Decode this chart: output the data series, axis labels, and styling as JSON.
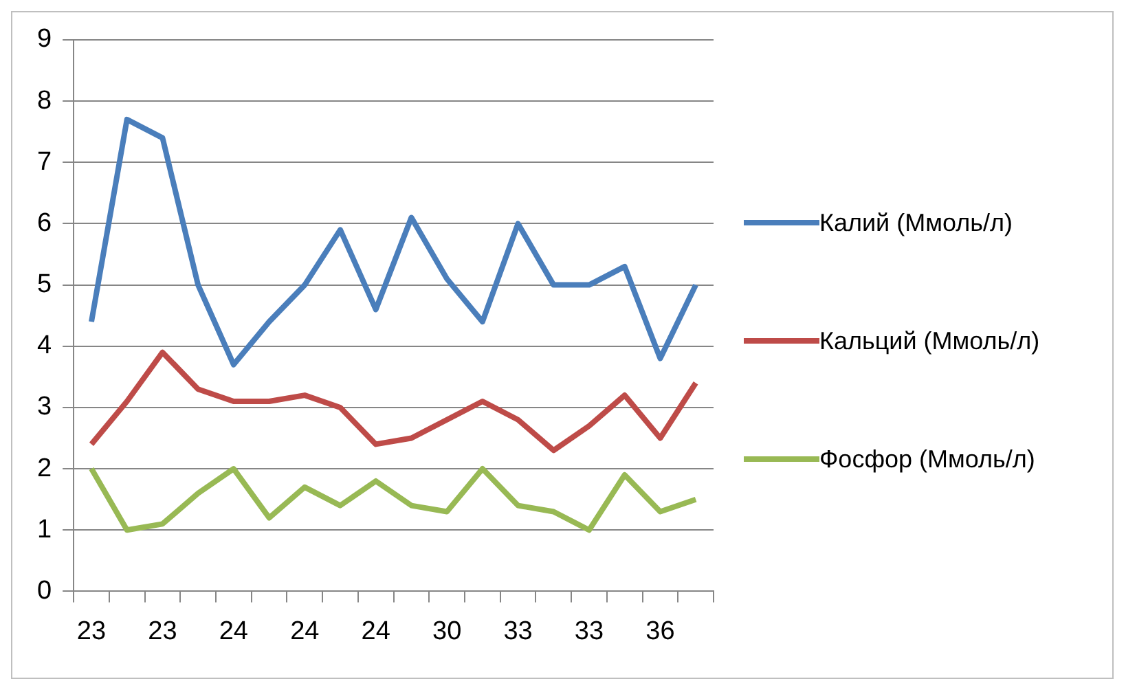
{
  "chart_data": {
    "type": "line",
    "categories": [
      "23",
      null,
      "23",
      null,
      "24",
      null,
      "24",
      null,
      "24",
      null,
      "30",
      null,
      "33",
      null,
      "33",
      null,
      "36",
      null
    ],
    "series": [
      {
        "name": "Калий (Ммоль/л)",
        "color": "#4a7ebb",
        "values": [
          4.4,
          7.7,
          7.4,
          5.0,
          3.7,
          4.4,
          5.0,
          5.9,
          4.6,
          6.1,
          5.1,
          4.4,
          6.0,
          5.0,
          5.0,
          5.3,
          3.8,
          5.0
        ]
      },
      {
        "name": "Кальций (Ммоль/л)",
        "color": "#be4b48",
        "values": [
          2.4,
          3.1,
          3.9,
          3.3,
          3.1,
          3.1,
          3.2,
          3.0,
          2.4,
          2.5,
          2.8,
          3.1,
          2.8,
          2.3,
          2.7,
          3.2,
          2.5,
          3.4
        ]
      },
      {
        "name": "Фосфор (Ммоль/л)",
        "color": "#98b954",
        "values": [
          2.0,
          1.0,
          1.1,
          1.6,
          2.0,
          1.2,
          1.7,
          1.4,
          1.8,
          1.4,
          1.3,
          2.0,
          1.4,
          1.3,
          1.0,
          1.9,
          1.3,
          1.5
        ]
      }
    ],
    "ylim": [
      0,
      9
    ],
    "yticks": [
      0,
      1,
      2,
      3,
      4,
      5,
      6,
      7,
      8,
      9
    ],
    "grid": "y",
    "legend": "right",
    "marker": "none",
    "line_style": "solid"
  }
}
